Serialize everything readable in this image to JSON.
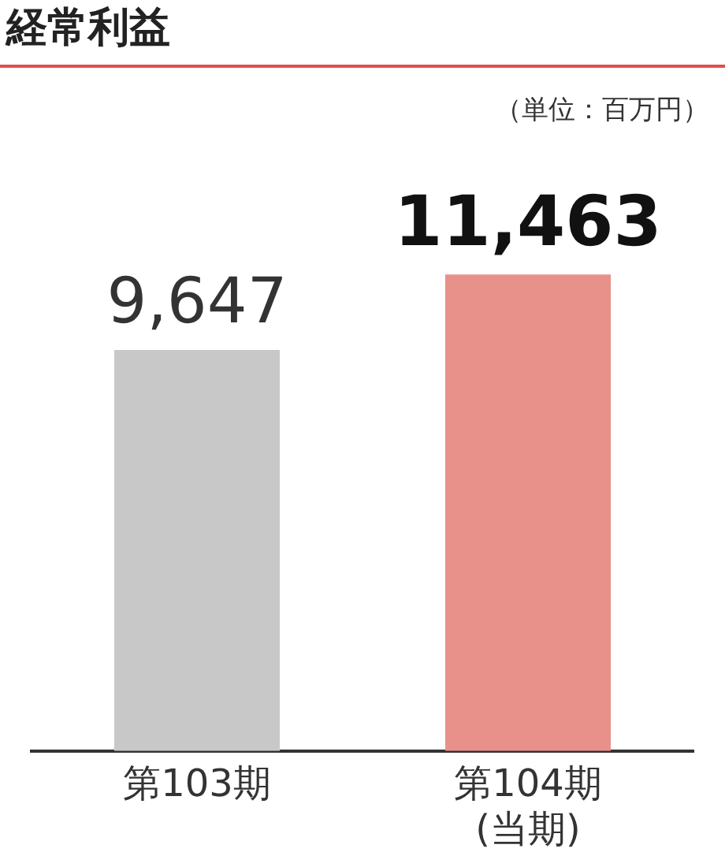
{
  "chart_data": {
    "type": "bar",
    "title": "経常利益",
    "subtitle": "（単位：百万円）",
    "categories": [
      "第103期",
      "第104期\n(当期)"
    ],
    "values": [
      9647,
      11463
    ],
    "value_labels": [
      "9,647",
      "11,463"
    ],
    "colors": [
      "#c8c8c8",
      "#e8918a"
    ],
    "grid": false,
    "legend": false
  }
}
